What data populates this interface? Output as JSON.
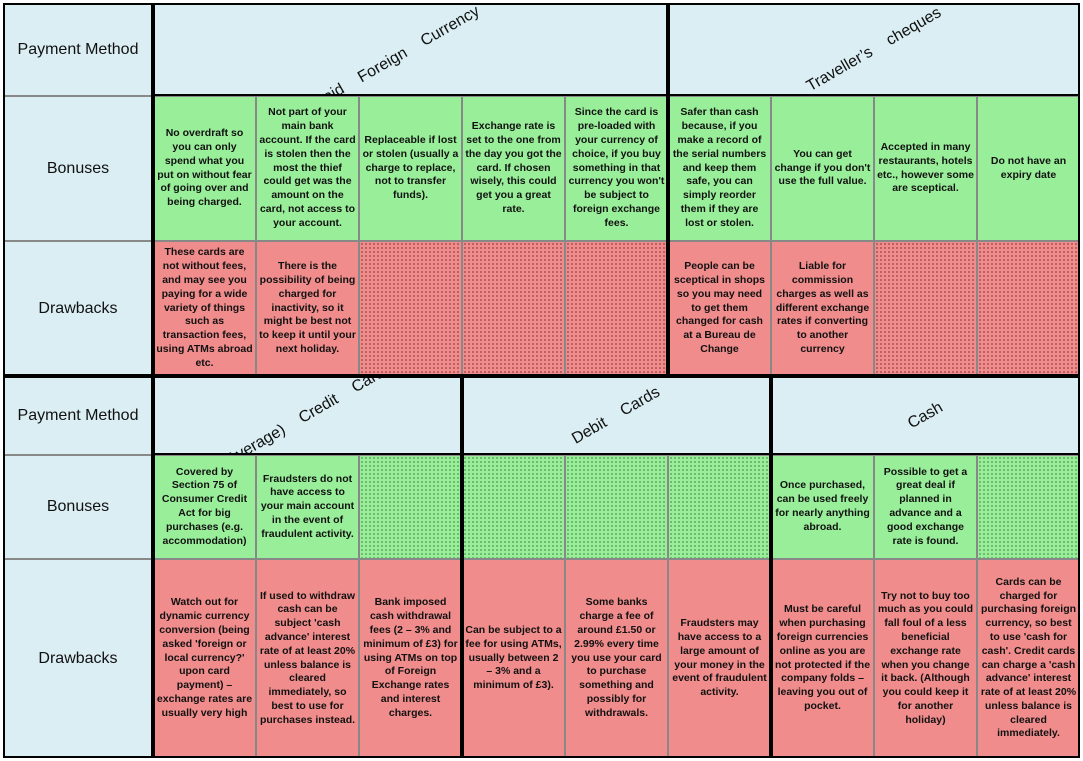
{
  "sections": [
    {
      "label": "Payment Method",
      "row_labels": [
        "Bonuses",
        "Drawbacks"
      ],
      "methods": [
        {
          "name": "Prepaid Foreign Currency Card",
          "bonuses": [
            "No overdraft so you can only spend what you put on without fear of going over and being charged.",
            "Not part of your main bank account. If the card is stolen then the most the thief could get was the amount on the card, not access to your account.",
            "Replaceable if lost or stolen (usually a charge to replace, not to transfer funds).",
            "Exchange rate is set to the one from the day you got the card. If chosen wisely, this could get you a great rate.",
            "Since the card is pre-loaded with your currency of choice, if you buy something in that currency you won't be subject to foreign exchange fees."
          ],
          "drawbacks": [
            "These cards are not without fees, and may see you paying for a wide variety of things such as transaction fees, using ATMs abroad etc.",
            "There is the possibility of being charged for inactivity, so it might be best not to keep it until your next holiday.",
            null,
            null,
            null
          ]
        },
        {
          "name": "Traveller’s cheques",
          "bonuses": [
            "Safer than cash because, if you make a record of the serial numbers and keep them safe, you can simply reorder them if they are lost or stolen.",
            "You can get change if you don't use the full value.",
            "Accepted in many restaurants, hotels etc., however some are sceptical.",
            "Do not have an expiry date"
          ],
          "drawbacks": [
            "People can be sceptical in shops so you may need to get them changed for cash at a Bureau de Change",
            "Liable for commission charges as well as different exchange rates if converting to another currency",
            null,
            null
          ]
        }
      ]
    },
    {
      "label": "Payment Method",
      "row_labels": [
        "Bonuses",
        "Drawbacks"
      ],
      "methods": [
        {
          "name": "(Average) Credit Cards",
          "bonuses": [
            "Covered by Section 75 of Consumer Credit Act for big purchases (e.g. accommodation)",
            "Fraudsters do not have access to your main account in the event of fraudulent activity.",
            null
          ],
          "drawbacks": [
            "Watch out for dynamic currency conversion (being asked 'foreign or local currency?' upon card payment) – exchange rates are usually very high",
            "If used to withdraw cash can be subject 'cash advance' interest rate of at least 20% unless balance is cleared immediately, so best to use for purchases instead.",
            "Bank imposed cash withdrawal fees (2 – 3% and minimum of £3) for using ATMs on top of Foreign Exchange rates and interest charges."
          ]
        },
        {
          "name": "Debit Cards",
          "bonuses": [
            null,
            null,
            null
          ],
          "drawbacks": [
            "Can be subject to a fee for using ATMs, usually between 2 – 3% and a minimum of £3).",
            "Some banks charge a fee of around £1.50 or 2.99% every time you use your card to purchase something and possibly for withdrawals.",
            "Fraudsters may have access to a large amount of your money in the event of fraudulent activity."
          ]
        },
        {
          "name": "Cash",
          "bonuses": [
            "Once purchased, can be used freely for nearly anything abroad.",
            "Possible to get a great deal if planned in advance and a good exchange rate is found.",
            null
          ],
          "drawbacks": [
            "Must be careful when purchasing foreign currencies online as you are not protected if the company folds – leaving you out of pocket.",
            "Try not to buy too much as you could fall foul of a less beneficial exchange rate when you change it back. (Although you could keep it for another holiday)",
            "Cards can be charged for purchasing foreign currency, so best to use 'cash for cash'. Credit cards can charge a 'cash advance' interest rate of at least 20% unless balance is cleared immediately."
          ]
        }
      ]
    }
  ]
}
